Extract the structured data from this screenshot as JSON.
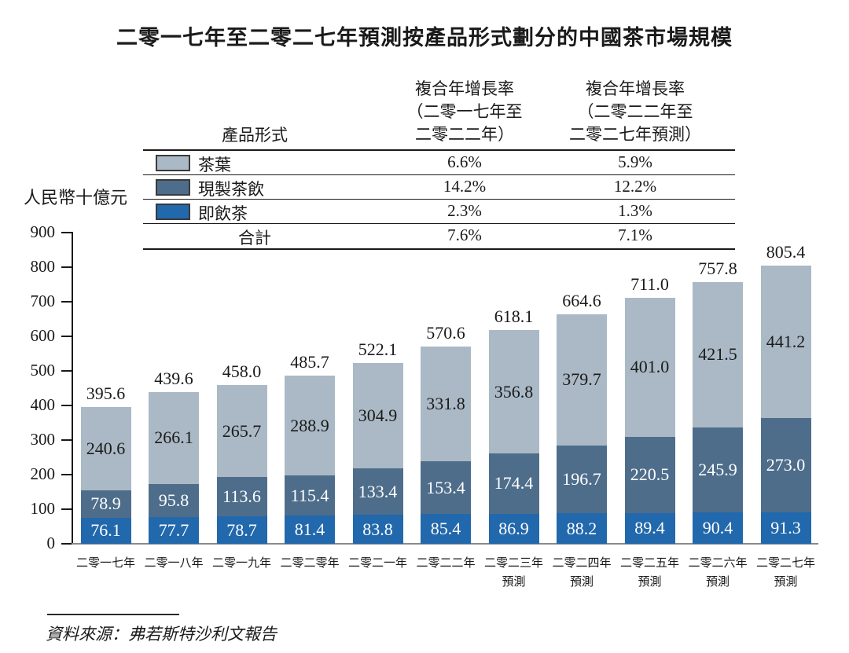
{
  "title": "二零一七年至二零二七年預測按產品形式劃分的中國茶市場規模",
  "unit_label": "人民幣十億元",
  "source": "資料來源：弗若斯特沙利文報告",
  "cagr_table": {
    "product_col_header": "產品形式",
    "col1_header_lines": [
      "複合年增長率",
      "（二零一七年至",
      "二零二二年）"
    ],
    "col2_header_lines": [
      "複合年增長率",
      "（二零二二年至",
      "二零二七年預測）"
    ],
    "rows": [
      {
        "key": "tea_leaves",
        "label": "茶葉",
        "cagr_2017_2022": "6.6%",
        "cagr_2022_2027": "5.9%"
      },
      {
        "key": "freshly_made_tea_drinks",
        "label": "現製茶飲",
        "cagr_2017_2022": "14.2%",
        "cagr_2022_2027": "12.2%"
      },
      {
        "key": "rtd_tea",
        "label": "即飲茶",
        "cagr_2017_2022": "2.3%",
        "cagr_2022_2027": "1.3%"
      }
    ],
    "total_row": {
      "key": "total",
      "label": "合計",
      "cagr_2017_2022": "7.6%",
      "cagr_2022_2027": "7.1%"
    }
  },
  "chart_data": {
    "type": "bar",
    "stacked": true,
    "title": "二零一七年至二零二七年預測按產品形式劃分的中國茶市場規模",
    "ylabel": "人民幣十億元",
    "ylim": [
      0,
      900
    ],
    "ytick_interval": 100,
    "grid": false,
    "legend_position": "table-top",
    "categories": [
      [
        "二零一七年"
      ],
      [
        "二零一八年"
      ],
      [
        "二零一九年"
      ],
      [
        "二零二零年"
      ],
      [
        "二零二一年"
      ],
      [
        "二零二二年"
      ],
      [
        "二零二三年",
        "預測"
      ],
      [
        "二零二四年",
        "預測"
      ],
      [
        "二零二五年",
        "預測"
      ],
      [
        "二零二六年",
        "預測"
      ],
      [
        "二零二七年",
        "預測"
      ]
    ],
    "series": [
      {
        "key": "rtd_tea",
        "name": "即飲茶",
        "color": "#2268ac",
        "label_color": "#ffffff",
        "values": [
          76.1,
          77.7,
          78.7,
          81.4,
          83.8,
          85.4,
          86.9,
          88.2,
          89.4,
          90.4,
          91.3
        ]
      },
      {
        "key": "freshly_made_tea_drinks",
        "name": "現製茶飲",
        "color": "#4e6d8b",
        "label_color": "#ffffff",
        "values": [
          78.9,
          95.8,
          113.6,
          115.4,
          133.4,
          153.4,
          174.4,
          196.7,
          220.5,
          245.9,
          273.0
        ]
      },
      {
        "key": "tea_leaves",
        "name": "茶葉",
        "color": "#aab9c5",
        "label_color": "#1a1a1a",
        "values": [
          240.6,
          266.1,
          265.7,
          288.9,
          304.9,
          331.8,
          356.8,
          379.7,
          401.0,
          421.5,
          441.2
        ]
      }
    ],
    "totals": [
      395.6,
      439.6,
      458.0,
      485.7,
      522.1,
      570.6,
      618.1,
      664.6,
      711.0,
      757.8,
      805.4
    ]
  }
}
